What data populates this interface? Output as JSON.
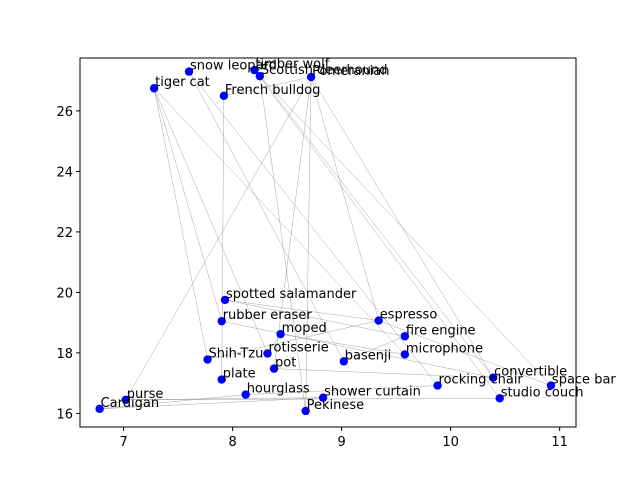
{
  "chart_data": {
    "type": "scatter",
    "title": "",
    "xlabel": "",
    "ylabel": "",
    "xlim": [
      6.6,
      11.15
    ],
    "ylim": [
      15.55,
      27.75
    ],
    "xticks": [
      7,
      8,
      9,
      10,
      11
    ],
    "yticks": [
      16,
      18,
      20,
      22,
      24,
      26
    ],
    "grid": false,
    "colors": {
      "point": "#0000ff",
      "line": "#808080",
      "axis": "#000000"
    },
    "points": [
      {
        "label": "snow leopard",
        "x": 7.6,
        "y": 27.3
      },
      {
        "label": "timber wolf",
        "x": 8.2,
        "y": 27.35
      },
      {
        "label": "Scottish deerhound",
        "x": 8.25,
        "y": 27.15
      },
      {
        "label": "Pomeranian",
        "x": 8.72,
        "y": 27.12
      },
      {
        "label": "tiger cat",
        "x": 7.28,
        "y": 26.75
      },
      {
        "label": "French bulldog",
        "x": 7.92,
        "y": 26.5
      },
      {
        "label": "spotted salamander",
        "x": 7.93,
        "y": 19.75
      },
      {
        "label": "espresso",
        "x": 9.34,
        "y": 19.07
      },
      {
        "label": "rubber eraser",
        "x": 7.9,
        "y": 19.05
      },
      {
        "label": "fire engine",
        "x": 9.58,
        "y": 18.55
      },
      {
        "label": "moped",
        "x": 8.44,
        "y": 18.62
      },
      {
        "label": "rotisserie",
        "x": 8.32,
        "y": 17.98
      },
      {
        "label": "microphone",
        "x": 9.58,
        "y": 17.95
      },
      {
        "label": "Shih-Tzu",
        "x": 7.77,
        "y": 17.78
      },
      {
        "label": "basenji",
        "x": 9.02,
        "y": 17.72
      },
      {
        "label": "pot",
        "x": 8.38,
        "y": 17.48
      },
      {
        "label": "convertible",
        "x": 10.39,
        "y": 17.18
      },
      {
        "label": "plate",
        "x": 7.9,
        "y": 17.12
      },
      {
        "label": "rocking chair",
        "x": 9.88,
        "y": 16.92
      },
      {
        "label": "space bar",
        "x": 10.92,
        "y": 16.92
      },
      {
        "label": "hourglass",
        "x": 8.12,
        "y": 16.62
      },
      {
        "label": "shower curtain",
        "x": 8.83,
        "y": 16.52
      },
      {
        "label": "studio couch",
        "x": 10.45,
        "y": 16.5
      },
      {
        "label": "purse",
        "x": 7.02,
        "y": 16.45
      },
      {
        "label": "Cardigan",
        "x": 6.78,
        "y": 16.15
      },
      {
        "label": "Pekinese",
        "x": 8.67,
        "y": 16.08
      }
    ],
    "path": [
      "Cardigan",
      "purse",
      "studio couch",
      "timber wolf",
      "space bar",
      "espresso",
      "Shih-Tzu",
      "tiger cat",
      "rotisserie",
      "moped",
      "microphone",
      "tiger cat",
      "rubber eraser",
      "convertible",
      "Scottish deerhound",
      "Pekinese",
      "Pomeranian",
      "purse",
      "shower curtain",
      "Cardigan",
      "hourglass",
      "rocking chair",
      "snow leopard",
      "basenji",
      "fire engine",
      "spotted salamander",
      "espresso",
      "Pomeranian",
      "convertible",
      "pot",
      "Pomeranian",
      "French bulldog",
      "plate"
    ]
  }
}
